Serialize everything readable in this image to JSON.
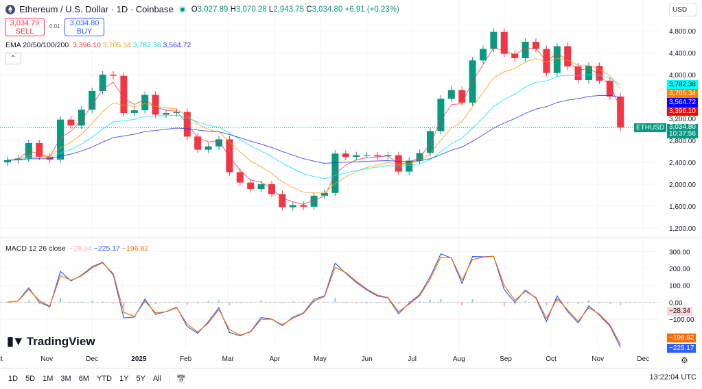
{
  "header": {
    "symbol": "Ethereum / U.S. Dollar · 1D · Coinbase",
    "open_label": "O",
    "open": "3,027.89",
    "high_label": "H",
    "high": "3,070.28",
    "low_label": "L",
    "low": "2,943.75",
    "close_label": "C",
    "close": "3,034.80",
    "change": "+6.91 (+0.23%)",
    "icon": "ethereum-icon",
    "status": "market-open-dot"
  },
  "trade": {
    "sell_price": "3,034.79",
    "sell_label": "SELL",
    "spread": "0.01",
    "buy_price": "3,034.80",
    "buy_label": "BUY"
  },
  "currency": "USD",
  "ema": {
    "label": "EMA 20/50/100/200",
    "values": [
      "3,396.10",
      "3,705.34",
      "3,782.38",
      "3,564.72"
    ],
    "colors": [
      "#f23645",
      "#ff9800",
      "#00e5ff",
      "#2e2eea"
    ]
  },
  "macd": {
    "label": "MACD 12 26 close",
    "hist": "−28.34",
    "macd": "−225.17",
    "signal": "−196.82",
    "colors": {
      "hist": "#f9c4c8",
      "macd": "#2962ff",
      "signal": "#ff6d00"
    }
  },
  "price_tag": {
    "symbol": "ETHUSD",
    "price": "3,034.80",
    "countdown": "10:37:56"
  },
  "brand": "TradingView",
  "colors": {
    "up": "#089981",
    "down": "#f23645"
  },
  "ranges": [
    "1D",
    "5D",
    "1M",
    "3M",
    "6M",
    "YTD",
    "1Y",
    "5Y",
    "All"
  ],
  "clock": "13:22:04 UTC",
  "chart_data": {
    "type": "candlestick",
    "interval": "weekly approximation of daily chart",
    "start": "2024-10-06",
    "closes": [
      2440,
      2470,
      2750,
      2500,
      2450,
      3180,
      3070,
      3360,
      3700,
      4000,
      3980,
      3300,
      3350,
      3630,
      3270,
      3300,
      3320,
      2870,
      2630,
      2690,
      2820,
      2220,
      2030,
      1910,
      2000,
      1820,
      1580,
      1620,
      1590,
      1790,
      1840,
      2560,
      2500,
      2530,
      2530,
      2510,
      2530,
      2230,
      2430,
      2570,
      2970,
      3560,
      3720,
      3490,
      4260,
      4470,
      4780,
      4380,
      4300,
      4600,
      4470,
      4030,
      4520,
      4150,
      3900,
      4160,
      3890,
      3600,
      3034.8
    ],
    "first_open": 2400,
    "ylim": [
      1050,
      5000
    ],
    "y_ticks": [
      "4,800.00",
      "4,400.00",
      "4,000.00",
      "3,200.00",
      "2,800.00",
      "2,400.00",
      "2,000.00",
      "1,600.00",
      "1,200.00"
    ],
    "macd_ylim": [
      -270,
      330
    ],
    "macd_ticks": [
      "300.00",
      "200.00",
      "100.00",
      "0.00",
      "−100.00"
    ],
    "x_ticks": [
      {
        "label": "ct",
        "date": "2024-10-01"
      },
      {
        "label": "Nov",
        "date": "2024-11-01"
      },
      {
        "label": "Dec",
        "date": "2024-12-01"
      },
      {
        "label": "2025",
        "date": "2025-01-01"
      },
      {
        "label": "Feb",
        "date": "2025-02-01"
      },
      {
        "label": "Mar",
        "date": "2025-03-01"
      },
      {
        "label": "Apr",
        "date": "2025-04-01"
      },
      {
        "label": "May",
        "date": "2025-05-01"
      },
      {
        "label": "Jun",
        "date": "2025-06-01"
      },
      {
        "label": "Jul",
        "date": "2025-07-01"
      },
      {
        "label": "Aug",
        "date": "2025-08-01"
      },
      {
        "label": "Sep",
        "date": "2025-09-01"
      },
      {
        "label": "Oct",
        "date": "2025-10-01"
      },
      {
        "label": "Nov",
        "date": "2025-11-01"
      },
      {
        "label": "Dec",
        "date": "2025-12-01"
      }
    ],
    "ema_final": [
      3396.1,
      3705.34,
      3782.38,
      3564.72
    ],
    "macd_final": {
      "hist": -28.34,
      "macd": -225.17,
      "signal": -196.82
    }
  }
}
